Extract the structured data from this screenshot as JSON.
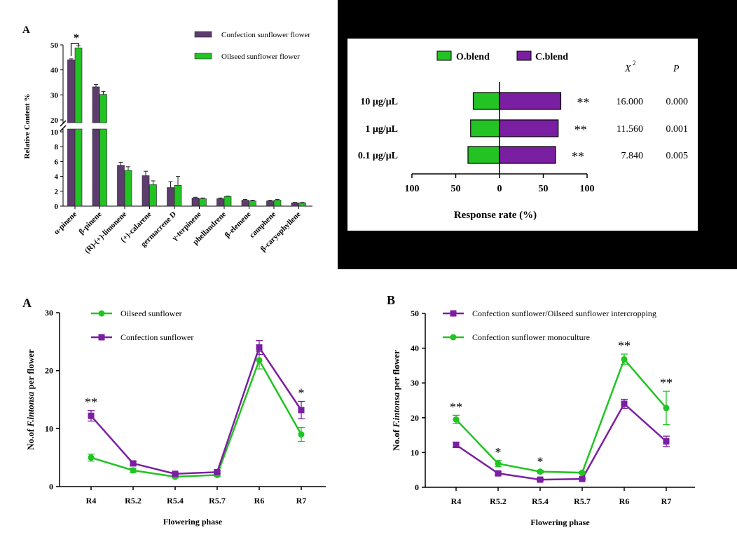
{
  "colors": {
    "purple": "#7b1fa2",
    "green": "#22c322",
    "dark_purple": "#5c3d6e"
  },
  "chart_data": [
    {
      "id": "bar_top_left",
      "type": "bar",
      "panel_label": "A",
      "ylabel": "Relative Content %",
      "categories": [
        "α-pinene",
        "β-pinene",
        "(R)-(+)-limonene",
        "(+)-calarene",
        "germacrene D",
        "γ-terpinene",
        "phellandrene",
        "β-elemene",
        "camphene",
        "β-caryophyllene"
      ],
      "series": [
        {
          "name": "Confection sunflower flower",
          "values": [
            44.0,
            33.2,
            5.5,
            4.1,
            2.5,
            1.1,
            1.0,
            0.8,
            0.7,
            0.45
          ],
          "errors": [
            0.4,
            1.0,
            0.4,
            0.6,
            0.8,
            0.1,
            0.1,
            0.1,
            0.1,
            0.05
          ]
        },
        {
          "name": "Oilseed sunflower flower",
          "values": [
            48.8,
            30.2,
            4.8,
            2.9,
            2.8,
            1.0,
            1.3,
            0.7,
            0.8,
            0.45
          ],
          "errors": [
            0.8,
            1.2,
            0.5,
            0.5,
            1.2,
            0.1,
            0.05,
            0.1,
            0.1,
            0.05
          ]
        }
      ],
      "broken_axis": {
        "lower_ticks": [
          0,
          2,
          4,
          6,
          8,
          10
        ],
        "upper_ticks": [
          20,
          30,
          40,
          50
        ]
      },
      "annotation": "*"
    },
    {
      "id": "diverging_bar",
      "type": "bar",
      "categories": [
        "10 μg/μL",
        "1 μg/μL",
        "0.1 μg/μL"
      ],
      "series": [
        {
          "name": "O.blend",
          "values": [
            -30,
            -33,
            -36
          ]
        },
        {
          "name": "C.blend",
          "values": [
            70,
            67,
            64
          ]
        }
      ],
      "xlabel": "Response rate (%)",
      "xticks": [
        "100",
        "50",
        "0",
        "50",
        "100"
      ],
      "xlim": [
        -100,
        100
      ],
      "stats_headers": [
        "X",
        "2",
        "P"
      ],
      "stats": [
        {
          "chi2": "16.000",
          "p": "0.000",
          "sig": "**"
        },
        {
          "chi2": "11.560",
          "p": "0.001",
          "sig": "**"
        },
        {
          "chi2": "7.840",
          "p": "0.005",
          "sig": "**"
        }
      ]
    },
    {
      "id": "line_bottom_left",
      "type": "line",
      "panel_label": "A",
      "categories": [
        "R4",
        "R5.2",
        "R5.4",
        "R5.7",
        "R6",
        "R7"
      ],
      "series": [
        {
          "name": "Oilseed sunflower",
          "values": [
            5.0,
            2.8,
            1.7,
            2.0,
            21.8,
            9.0
          ],
          "errors": [
            0.6,
            0.4,
            0.2,
            0.2,
            1.5,
            1.2
          ],
          "marker": "circle"
        },
        {
          "name": "Confection sunflower",
          "values": [
            12.2,
            4.0,
            2.2,
            2.5,
            24.0,
            13.2
          ],
          "errors": [
            0.9,
            0.3,
            0.2,
            0.2,
            1.2,
            1.5
          ],
          "marker": "square"
        }
      ],
      "ylim": [
        0,
        30
      ],
      "yticks": [
        0,
        10,
        20,
        30
      ],
      "xlabel": "Flowering phase",
      "ylabel_pre": "No.of ",
      "ylabel_italic": "F.intonsa",
      "ylabel_post": " per flower",
      "annotations": [
        {
          "index": 0,
          "text": "**"
        },
        {
          "index": 5,
          "text": "*"
        }
      ]
    },
    {
      "id": "line_bottom_right",
      "type": "line",
      "panel_label": "B",
      "categories": [
        "R4",
        "R5.2",
        "R5.4",
        "R5.7",
        "R6",
        "R7"
      ],
      "series": [
        {
          "name": "Confection sunflower/Oilseed sunflower intercropping",
          "values": [
            12.2,
            4.0,
            2.2,
            2.4,
            24.0,
            13.2
          ],
          "errors": [
            0.8,
            0.4,
            0.3,
            0.2,
            1.3,
            1.5
          ],
          "marker": "square"
        },
        {
          "name": "Confection sunflower monoculture",
          "values": [
            19.5,
            6.8,
            4.5,
            4.2,
            36.8,
            22.8
          ],
          "errors": [
            1.2,
            0.9,
            0.4,
            0.3,
            1.5,
            4.8
          ],
          "marker": "circle"
        }
      ],
      "ylim": [
        0,
        50
      ],
      "yticks": [
        0,
        10,
        20,
        30,
        40,
        50
      ],
      "xlabel": "Flowering phase",
      "ylabel_pre": "No.of ",
      "ylabel_italic": "F.intonsa",
      "ylabel_post": " per flower",
      "annotations": [
        {
          "index": 0,
          "text": "**"
        },
        {
          "index": 1,
          "text": "*"
        },
        {
          "index": 2,
          "text": "*"
        },
        {
          "index": 4,
          "text": "**"
        },
        {
          "index": 5,
          "text": "**"
        }
      ]
    }
  ]
}
